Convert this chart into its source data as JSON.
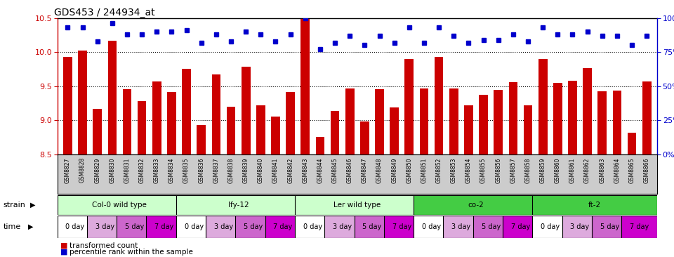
{
  "title": "GDS453 / 244934_at",
  "samples": [
    "GSM8827",
    "GSM8828",
    "GSM8829",
    "GSM8830",
    "GSM8831",
    "GSM8832",
    "GSM8833",
    "GSM8834",
    "GSM8835",
    "GSM8836",
    "GSM8837",
    "GSM8838",
    "GSM8839",
    "GSM8840",
    "GSM8841",
    "GSM8842",
    "GSM8843",
    "GSM8844",
    "GSM8845",
    "GSM8846",
    "GSM8847",
    "GSM8848",
    "GSM8849",
    "GSM8850",
    "GSM8851",
    "GSM8852",
    "GSM8853",
    "GSM8854",
    "GSM8855",
    "GSM8856",
    "GSM8857",
    "GSM8858",
    "GSM8859",
    "GSM8860",
    "GSM8861",
    "GSM8862",
    "GSM8863",
    "GSM8864",
    "GSM8865",
    "GSM8866"
  ],
  "bar_values": [
    9.93,
    10.02,
    9.17,
    10.17,
    9.45,
    9.28,
    9.57,
    9.41,
    9.75,
    8.93,
    9.67,
    9.2,
    9.78,
    9.22,
    9.05,
    9.41,
    10.49,
    8.75,
    9.13,
    9.46,
    8.98,
    9.45,
    9.19,
    9.9,
    9.46,
    9.93,
    9.47,
    9.22,
    9.37,
    9.44,
    9.56,
    9.22,
    9.9,
    9.55,
    9.58,
    9.76,
    9.42,
    9.43,
    8.82,
    9.57
  ],
  "dot_values": [
    93,
    93,
    83,
    96,
    88,
    88,
    90,
    90,
    91,
    82,
    88,
    83,
    90,
    88,
    83,
    88,
    100,
    77,
    82,
    87,
    80,
    87,
    82,
    93,
    82,
    93,
    87,
    82,
    84,
    84,
    88,
    83,
    93,
    88,
    88,
    90,
    87,
    87,
    80,
    87
  ],
  "ylim_left": [
    8.5,
    10.5
  ],
  "ylim_right": [
    0,
    100
  ],
  "yticks_left": [
    8.5,
    9.0,
    9.5,
    10.0,
    10.5
  ],
  "yticks_right": [
    0,
    25,
    50,
    75,
    100
  ],
  "bar_color": "#cc0000",
  "dot_color": "#0000cc",
  "strains": [
    {
      "label": "Col-0 wild type",
      "color": "#ccffcc"
    },
    {
      "label": "lfy-12",
      "color": "#ccffcc"
    },
    {
      "label": "Ler wild type",
      "color": "#ccffcc"
    },
    {
      "label": "co-2",
      "color": "#44cc44"
    },
    {
      "label": "ft-2",
      "color": "#44cc44"
    }
  ],
  "time_labels": [
    "0 day",
    "3 day",
    "5 day",
    "7 day"
  ],
  "time_colors": [
    "#ffffff",
    "#ddaadd",
    "#cc66cc",
    "#cc00cc"
  ],
  "n_groups": 5,
  "n_per_group": 8,
  "samples_per_time": 2,
  "legend_items": [
    {
      "label": "transformed count",
      "color": "#cc0000"
    },
    {
      "label": "percentile rank within the sample",
      "color": "#0000cc"
    }
  ],
  "xtick_bg": "#cccccc"
}
